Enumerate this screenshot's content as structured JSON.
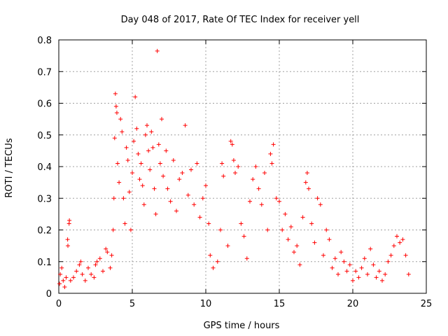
{
  "chart_data": {
    "type": "scatter",
    "title": "Day 048 of 2017, Rate Of TEC Index for receiver yell",
    "xlabel": "GPS time / hours",
    "ylabel": "ROTI / TECUs",
    "xlim": [
      0,
      25
    ],
    "ylim": [
      0,
      0.8
    ],
    "xticks": [
      0,
      5,
      10,
      15,
      20,
      25
    ],
    "yticks": [
      0,
      0.1,
      0.2,
      0.3,
      0.4,
      0.5,
      0.6,
      0.7,
      0.8
    ],
    "grid": true,
    "marker": "+",
    "color": "#ff0000",
    "series": [
      {
        "points": [
          [
            0.05,
            0.03
          ],
          [
            0.1,
            0.06
          ],
          [
            0.2,
            0.08
          ],
          [
            0.3,
            0.04
          ],
          [
            0.4,
            0.02
          ],
          [
            0.5,
            0.05
          ],
          [
            0.6,
            0.17
          ],
          [
            0.62,
            0.15
          ],
          [
            0.7,
            0.22
          ],
          [
            0.72,
            0.23
          ],
          [
            0.8,
            0.04
          ],
          [
            1.0,
            0.05
          ],
          [
            1.2,
            0.07
          ],
          [
            1.4,
            0.09
          ],
          [
            1.5,
            0.1
          ],
          [
            1.6,
            0.06
          ],
          [
            1.8,
            0.04
          ],
          [
            2.0,
            0.08
          ],
          [
            2.2,
            0.06
          ],
          [
            2.4,
            0.05
          ],
          [
            2.5,
            0.09
          ],
          [
            2.6,
            0.1
          ],
          [
            2.8,
            0.11
          ],
          [
            3.0,
            0.07
          ],
          [
            3.2,
            0.14
          ],
          [
            3.3,
            0.13
          ],
          [
            3.5,
            0.08
          ],
          [
            3.6,
            0.12
          ],
          [
            3.7,
            0.2
          ],
          [
            3.75,
            0.3
          ],
          [
            3.8,
            0.49
          ],
          [
            3.85,
            0.63
          ],
          [
            3.9,
            0.59
          ],
          [
            3.95,
            0.57
          ],
          [
            4.0,
            0.41
          ],
          [
            4.1,
            0.35
          ],
          [
            4.2,
            0.55
          ],
          [
            4.3,
            0.51
          ],
          [
            4.4,
            0.3
          ],
          [
            4.5,
            0.22
          ],
          [
            4.6,
            0.46
          ],
          [
            4.7,
            0.42
          ],
          [
            4.8,
            0.32
          ],
          [
            4.9,
            0.2
          ],
          [
            5.0,
            0.38
          ],
          [
            5.1,
            0.48
          ],
          [
            5.2,
            0.62
          ],
          [
            5.3,
            0.52
          ],
          [
            5.4,
            0.44
          ],
          [
            5.5,
            0.36
          ],
          [
            5.6,
            0.41
          ],
          [
            5.7,
            0.34
          ],
          [
            5.8,
            0.28
          ],
          [
            5.9,
            0.5
          ],
          [
            6.0,
            0.53
          ],
          [
            6.1,
            0.45
          ],
          [
            6.2,
            0.39
          ],
          [
            6.3,
            0.51
          ],
          [
            6.4,
            0.46
          ],
          [
            6.5,
            0.33
          ],
          [
            6.6,
            0.25
          ],
          [
            6.7,
            0.765
          ],
          [
            6.8,
            0.47
          ],
          [
            6.9,
            0.41
          ],
          [
            7.0,
            0.55
          ],
          [
            7.1,
            0.37
          ],
          [
            7.3,
            0.45
          ],
          [
            7.4,
            0.33
          ],
          [
            7.6,
            0.29
          ],
          [
            7.8,
            0.42
          ],
          [
            8.0,
            0.26
          ],
          [
            8.2,
            0.36
          ],
          [
            8.4,
            0.38
          ],
          [
            8.6,
            0.53
          ],
          [
            8.8,
            0.31
          ],
          [
            9.0,
            0.39
          ],
          [
            9.2,
            0.28
          ],
          [
            9.4,
            0.41
          ],
          [
            9.6,
            0.24
          ],
          [
            9.8,
            0.3
          ],
          [
            10.0,
            0.34
          ],
          [
            10.2,
            0.22
          ],
          [
            10.3,
            0.12
          ],
          [
            10.5,
            0.08
          ],
          [
            10.8,
            0.1
          ],
          [
            11.0,
            0.2
          ],
          [
            11.1,
            0.41
          ],
          [
            11.2,
            0.37
          ],
          [
            11.5,
            0.15
          ],
          [
            11.7,
            0.48
          ],
          [
            11.8,
            0.47
          ],
          [
            11.9,
            0.42
          ],
          [
            12.0,
            0.38
          ],
          [
            12.2,
            0.4
          ],
          [
            12.4,
            0.22
          ],
          [
            12.6,
            0.18
          ],
          [
            12.8,
            0.11
          ],
          [
            13.0,
            0.29
          ],
          [
            13.2,
            0.36
          ],
          [
            13.4,
            0.4
          ],
          [
            13.6,
            0.33
          ],
          [
            13.8,
            0.28
          ],
          [
            14.0,
            0.38
          ],
          [
            14.2,
            0.2
          ],
          [
            14.4,
            0.44
          ],
          [
            14.5,
            0.41
          ],
          [
            14.6,
            0.47
          ],
          [
            14.8,
            0.3
          ],
          [
            15.0,
            0.29
          ],
          [
            15.2,
            0.2
          ],
          [
            15.4,
            0.25
          ],
          [
            15.6,
            0.17
          ],
          [
            15.8,
            0.21
          ],
          [
            16.0,
            0.13
          ],
          [
            16.2,
            0.15
          ],
          [
            16.4,
            0.09
          ],
          [
            16.6,
            0.24
          ],
          [
            16.8,
            0.35
          ],
          [
            16.9,
            0.38
          ],
          [
            17.0,
            0.33
          ],
          [
            17.2,
            0.22
          ],
          [
            17.4,
            0.16
          ],
          [
            17.6,
            0.3
          ],
          [
            17.8,
            0.28
          ],
          [
            18.0,
            0.12
          ],
          [
            18.2,
            0.2
          ],
          [
            18.4,
            0.17
          ],
          [
            18.6,
            0.08
          ],
          [
            18.8,
            0.11
          ],
          [
            19.0,
            0.06
          ],
          [
            19.2,
            0.13
          ],
          [
            19.4,
            0.1
          ],
          [
            19.6,
            0.07
          ],
          [
            19.8,
            0.09
          ],
          [
            20.0,
            0.04
          ],
          [
            20.2,
            0.07
          ],
          [
            20.4,
            0.05
          ],
          [
            20.6,
            0.08
          ],
          [
            20.8,
            0.11
          ],
          [
            21.0,
            0.06
          ],
          [
            21.2,
            0.14
          ],
          [
            21.4,
            0.09
          ],
          [
            21.6,
            0.05
          ],
          [
            21.8,
            0.07
          ],
          [
            22.0,
            0.04
          ],
          [
            22.2,
            0.06
          ],
          [
            22.4,
            0.1
          ],
          [
            22.6,
            0.12
          ],
          [
            22.8,
            0.15
          ],
          [
            23.0,
            0.18
          ],
          [
            23.2,
            0.16
          ],
          [
            23.4,
            0.17
          ],
          [
            23.6,
            0.12
          ],
          [
            23.8,
            0.06
          ]
        ]
      }
    ]
  }
}
